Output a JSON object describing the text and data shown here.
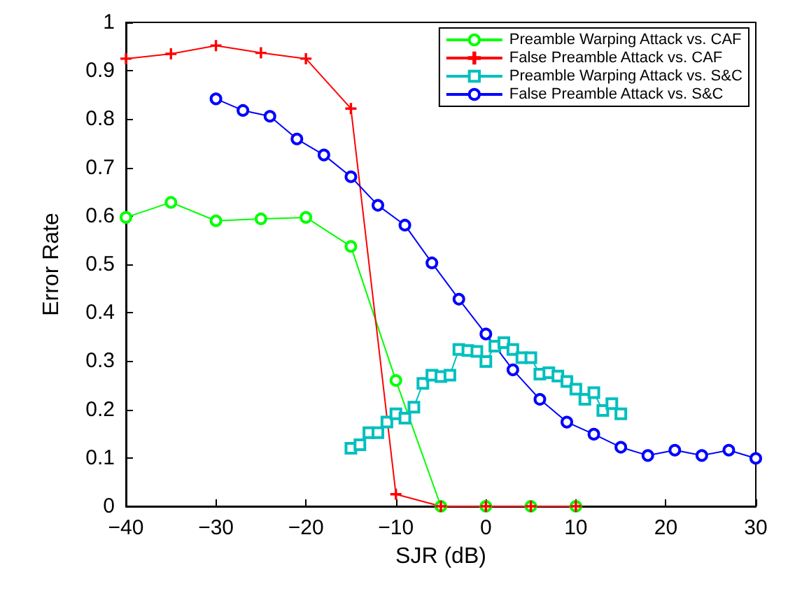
{
  "chart_data": {
    "type": "line",
    "xlabel": "SJR (dB)",
    "ylabel": "Error Rate",
    "xlim": [
      -40,
      30
    ],
    "xticks": [
      -40,
      -30,
      -20,
      -10,
      0,
      10,
      20,
      30
    ],
    "ylim": [
      0,
      1
    ],
    "yticks": [
      0,
      0.1,
      0.2,
      0.3,
      0.4,
      0.5,
      0.6,
      0.7,
      0.8,
      0.9,
      1
    ],
    "grid": false,
    "legend": "top right",
    "line_style": "solid",
    "series": [
      {
        "name": "Preamble Warping Attack vs. CAF",
        "color": "#00ff00",
        "marker": "circle",
        "x": [
          -40,
          -35,
          -30,
          -25,
          -20,
          -15,
          -10,
          -5,
          0,
          5,
          10
        ],
        "values": [
          0.597,
          0.628,
          0.59,
          0.594,
          0.597,
          0.537,
          0.26,
          0,
          0,
          0,
          0
        ]
      },
      {
        "name": "False Preamble Attack vs. CAF",
        "color": "#ff0000",
        "marker": "cross",
        "x": [
          -40,
          -35,
          -30,
          -25,
          -20,
          -15,
          -10,
          -5,
          0,
          5,
          10
        ],
        "values": [
          0.925,
          0.935,
          0.952,
          0.937,
          0.925,
          0.822,
          0.025,
          0,
          0,
          0,
          0
        ]
      },
      {
        "name": "Preamble Warping Attack vs. S&C",
        "color": "#00bfbf",
        "marker": "square",
        "x": [
          -15,
          -14,
          -13,
          -12,
          -11,
          -10,
          -9,
          -8,
          -7,
          -6,
          -5,
          -4,
          -3,
          -2,
          -1,
          0,
          1,
          2,
          3,
          4,
          5,
          6,
          7,
          8,
          9,
          10,
          11,
          12,
          13,
          14,
          15
        ],
        "values": [
          0.12,
          0.127,
          0.152,
          0.152,
          0.174,
          0.191,
          0.182,
          0.205,
          0.254,
          0.271,
          0.268,
          0.271,
          0.324,
          0.322,
          0.32,
          0.299,
          0.331,
          0.338,
          0.324,
          0.307,
          0.307,
          0.273,
          0.276,
          0.269,
          0.258,
          0.242,
          0.221,
          0.235,
          0.198,
          0.212,
          0.191
        ]
      },
      {
        "name": "False Preamble Attack vs. S&C",
        "color": "#0000ff",
        "marker": "circle",
        "x": [
          -30,
          -27,
          -24,
          -21,
          -18,
          -15,
          -12,
          -9,
          -6,
          -3,
          0,
          3,
          6,
          9,
          12,
          15,
          18,
          21,
          24,
          27,
          30
        ],
        "values": [
          0.842,
          0.818,
          0.806,
          0.759,
          0.726,
          0.681,
          0.622,
          0.581,
          0.503,
          0.428,
          0.356,
          0.282,
          0.221,
          0.174,
          0.149,
          0.122,
          0.105,
          0.116,
          0.105,
          0.116,
          0.099
        ]
      }
    ]
  }
}
